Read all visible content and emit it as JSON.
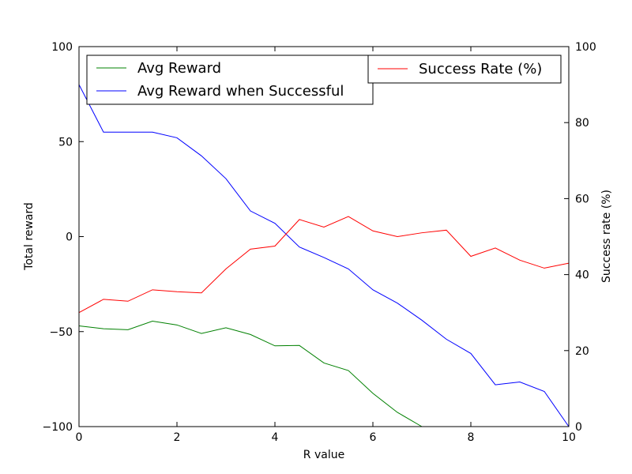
{
  "chart_data": {
    "type": "line",
    "xlabel": "R value",
    "ylabel_left": "Total reward",
    "ylabel_right": "Success rate (%)",
    "xlim": [
      0,
      10
    ],
    "ylim_left": [
      -100,
      100
    ],
    "ylim_right": [
      0,
      100
    ],
    "x_ticks": [
      "0",
      "2",
      "4",
      "6",
      "8",
      "10"
    ],
    "y_left_ticks": [
      "100",
      "50",
      "0",
      "−50",
      "−100"
    ],
    "y_right_ticks": [
      "100",
      "80",
      "60",
      "40",
      "20",
      "0"
    ],
    "grid": false,
    "x": [
      0,
      0.5,
      1,
      1.5,
      2,
      2.5,
      3,
      3.5,
      4,
      4.5,
      5,
      5.5,
      6,
      6.5,
      7,
      7.5,
      8,
      8.5,
      9,
      9.5,
      10
    ],
    "series": [
      {
        "name": "Avg Reward",
        "axis": "left",
        "color": "#008000",
        "values": [
          -47,
          -48.5,
          -49,
          -44.5,
          -46.5,
          -51,
          -48,
          -51.5,
          -57.5,
          -57.3,
          -66.5,
          -70.5,
          -82.5,
          -92.5,
          -100,
          null,
          null,
          null,
          null,
          null,
          null
        ]
      },
      {
        "name": "Avg Reward when Successful",
        "axis": "left",
        "color": "#0000ff",
        "values": [
          80,
          55,
          55,
          55,
          52,
          42.5,
          30.5,
          13.5,
          7,
          -5.5,
          -11,
          -17,
          -28,
          -35,
          -44,
          -54,
          -61.5,
          -78,
          -76.5,
          -81.5,
          -100
        ]
      },
      {
        "name": "Success Rate (%)",
        "axis": "right",
        "color": "#ff0000",
        "values": [
          30,
          33.5,
          33,
          36,
          35.5,
          35.2,
          41.5,
          46.7,
          47.5,
          54.5,
          52.5,
          55.3,
          51.5,
          50,
          51,
          51.7,
          44.8,
          47,
          43.8,
          41.7,
          43
        ]
      }
    ],
    "legends": [
      {
        "placement": "upper-left",
        "entries": [
          0,
          1
        ]
      },
      {
        "placement": "upper-right",
        "entries": [
          2
        ]
      }
    ]
  }
}
